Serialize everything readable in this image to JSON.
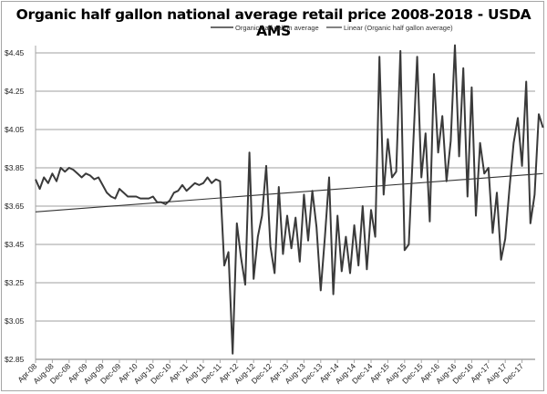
{
  "chart_data": {
    "type": "line",
    "title": "Organic half gallon national average retail price 2008-2018 - USDA AMS",
    "xlabel": "",
    "ylabel": "",
    "ylim": [
      2.85,
      4.45
    ],
    "yticks": [
      "$2.85",
      "$3.05",
      "$3.25",
      "$3.45",
      "$3.65",
      "$3.85",
      "$4.05",
      "$4.25",
      "$4.45"
    ],
    "ytick_values": [
      2.85,
      3.05,
      3.25,
      3.45,
      3.65,
      3.85,
      4.05,
      4.25,
      4.45
    ],
    "xticks": [
      "Apr-08",
      "Aug-08",
      "Dec-08",
      "Apr-09",
      "Aug-09",
      "Dec-09",
      "Apr-10",
      "Aug-10",
      "Dec-10",
      "Apr-11",
      "Aug-11",
      "Dec-11",
      "Apr-12",
      "Aug-12",
      "Dec-12",
      "Apr-13",
      "Aug-13",
      "Dec-13",
      "Apr-14",
      "Aug-14",
      "Dec-14",
      "Apr-15",
      "Aug-15",
      "Dec-15",
      "Apr-16",
      "Aug-16",
      "Dec-16",
      "Apr-17",
      "Aug-17",
      "Dec-17"
    ],
    "x_start": "Apr-08",
    "x_step": "1 month",
    "grid": true,
    "legend_position": "top-center",
    "legend": [
      "Organic half gallon average",
      "Linear (Organic half gallon average)"
    ],
    "series": [
      {
        "name": "Organic half gallon average",
        "values": [
          3.79,
          3.74,
          3.8,
          3.77,
          3.82,
          3.78,
          3.85,
          3.83,
          3.85,
          3.84,
          3.82,
          3.8,
          3.82,
          3.81,
          3.79,
          3.8,
          3.76,
          3.72,
          3.7,
          3.69,
          3.74,
          3.72,
          3.7,
          3.7,
          3.7,
          3.69,
          3.69,
          3.69,
          3.7,
          3.67,
          3.67,
          3.66,
          3.68,
          3.72,
          3.73,
          3.76,
          3.73,
          3.75,
          3.77,
          3.76,
          3.77,
          3.8,
          3.77,
          3.79,
          3.78,
          3.34,
          3.41,
          2.88,
          3.56,
          3.38,
          3.24,
          3.93,
          3.27,
          3.49,
          3.6,
          3.86,
          3.44,
          3.3,
          3.75,
          3.4,
          3.6,
          3.43,
          3.59,
          3.36,
          3.71,
          3.47,
          3.73,
          3.54,
          3.21,
          3.49,
          3.8,
          3.19,
          3.6,
          3.31,
          3.49,
          3.3,
          3.55,
          3.34,
          3.65,
          3.32,
          3.63,
          3.49,
          4.43,
          3.71,
          4.0,
          3.8,
          3.83,
          4.46,
          3.42,
          3.45,
          3.94,
          4.43,
          3.8,
          4.03,
          3.57,
          4.34,
          3.93,
          4.12,
          3.78,
          3.99,
          4.49,
          3.91,
          4.37,
          3.7,
          4.27,
          3.6,
          3.98,
          3.82,
          3.85,
          3.51,
          3.72,
          3.37,
          3.48,
          3.74,
          3.98,
          4.11,
          3.86,
          4.3,
          3.56,
          3.71,
          4.13,
          4.06
        ]
      },
      {
        "name": "Linear (Organic half gallon average)",
        "type": "trendline",
        "start": 3.62,
        "end": 3.82
      }
    ]
  }
}
